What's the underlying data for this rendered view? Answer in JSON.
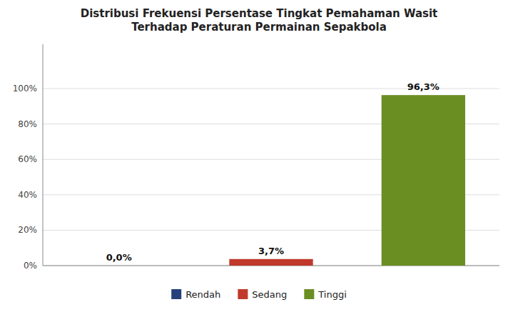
{
  "chart_data": {
    "type": "bar",
    "title": "Distribusi Frekuensi Persentase Tingkat Pemahaman Wasit\nTerhadap Peraturan Permainan Sepakbola",
    "categories": [
      "Rendah",
      "Sedang",
      "Tinggi"
    ],
    "values": [
      0.0,
      3.7,
      96.3
    ],
    "value_labels": [
      "0,0%",
      "3,7%",
      "96,3%"
    ],
    "colors": [
      "#243F7A",
      "#C0392B",
      "#6B8E23"
    ],
    "ylim": [
      0,
      125
    ],
    "yticks": [
      {
        "value": 0,
        "label": "0%"
      },
      {
        "value": 20,
        "label": "20%"
      },
      {
        "value": 40,
        "label": "40%"
      },
      {
        "value": 60,
        "label": "60%"
      },
      {
        "value": 80,
        "label": "80%"
      },
      {
        "value": 100,
        "label": "100%"
      }
    ],
    "grid": true,
    "data_labels": true,
    "tick_labels": "y",
    "legend": "bottom"
  }
}
